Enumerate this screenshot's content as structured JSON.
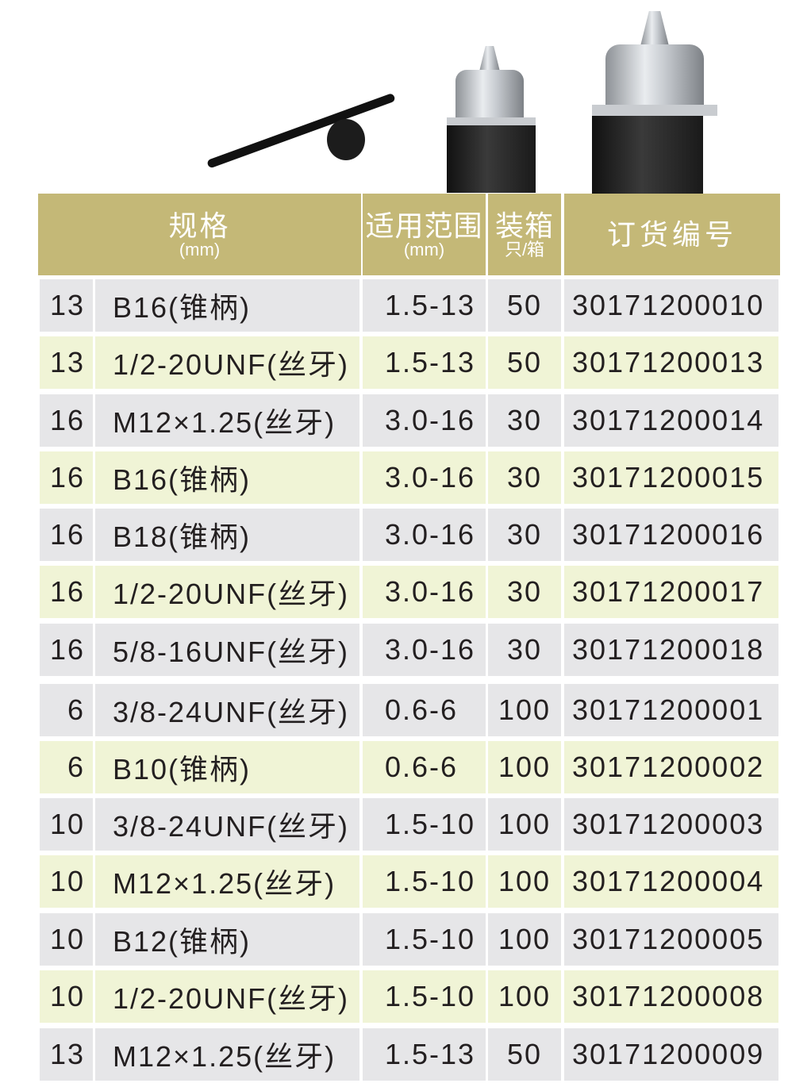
{
  "header": {
    "spec": "规格",
    "spec_unit": "(mm)",
    "range": "适用范围",
    "range_unit": "(mm)",
    "box": "装箱",
    "box_unit": "只/箱",
    "order_no": "订货编号"
  },
  "colors": {
    "header": "#c4b877",
    "row_gray": "#e6e6e8",
    "row_green": "#f0f4d6"
  },
  "products": [
    "chuck-key",
    "drill-chuck-small",
    "drill-chuck-large"
  ],
  "rows": [
    {
      "size": "13",
      "spec": "B16(锥柄)",
      "range": "1.5-13",
      "box": "50",
      "order": "30171200010",
      "shade": "gray"
    },
    {
      "size": "13",
      "spec": "1/2-20UNF(丝牙)",
      "range": "1.5-13",
      "box": "50",
      "order": "30171200013",
      "shade": "green"
    },
    {
      "size": "16",
      "spec": "M12×1.25(丝牙)",
      "range": "3.0-16",
      "box": "30",
      "order": "30171200014",
      "shade": "gray"
    },
    {
      "size": "16",
      "spec": "B16(锥柄)",
      "range": "3.0-16",
      "box": "30",
      "order": "30171200015",
      "shade": "green"
    },
    {
      "size": "16",
      "spec": "B18(锥柄)",
      "range": "3.0-16",
      "box": "30",
      "order": "30171200016",
      "shade": "gray"
    },
    {
      "size": "16",
      "spec": "1/2-20UNF(丝牙)",
      "range": "3.0-16",
      "box": "30",
      "order": "30171200017",
      "shade": "green"
    },
    {
      "size": "16",
      "spec": "5/8-16UNF(丝牙)",
      "range": "3.0-16",
      "box": "30",
      "order": "30171200018",
      "shade": "gray"
    },
    {
      "size": "6",
      "spec": "3/8-24UNF(丝牙)",
      "range": "0.6-6",
      "box": "100",
      "order": "30171200001",
      "shade": "gray"
    },
    {
      "size": "6",
      "spec": "B10(锥柄)",
      "range": "0.6-6",
      "box": "100",
      "order": "30171200002",
      "shade": "green"
    },
    {
      "size": "10",
      "spec": "3/8-24UNF(丝牙)",
      "range": "1.5-10",
      "box": "100",
      "order": "30171200003",
      "shade": "gray"
    },
    {
      "size": "10",
      "spec": "M12×1.25(丝牙)",
      "range": "1.5-10",
      "box": "100",
      "order": "30171200004",
      "shade": "green"
    },
    {
      "size": "10",
      "spec": "B12(锥柄)",
      "range": "1.5-10",
      "box": "100",
      "order": "30171200005",
      "shade": "gray"
    },
    {
      "size": "10",
      "spec": "1/2-20UNF(丝牙)",
      "range": "1.5-10",
      "box": "100",
      "order": "30171200008",
      "shade": "green"
    },
    {
      "size": "13",
      "spec": "M12×1.25(丝牙)",
      "range": "1.5-13",
      "box": "50",
      "order": "30171200009",
      "shade": "gray"
    }
  ]
}
